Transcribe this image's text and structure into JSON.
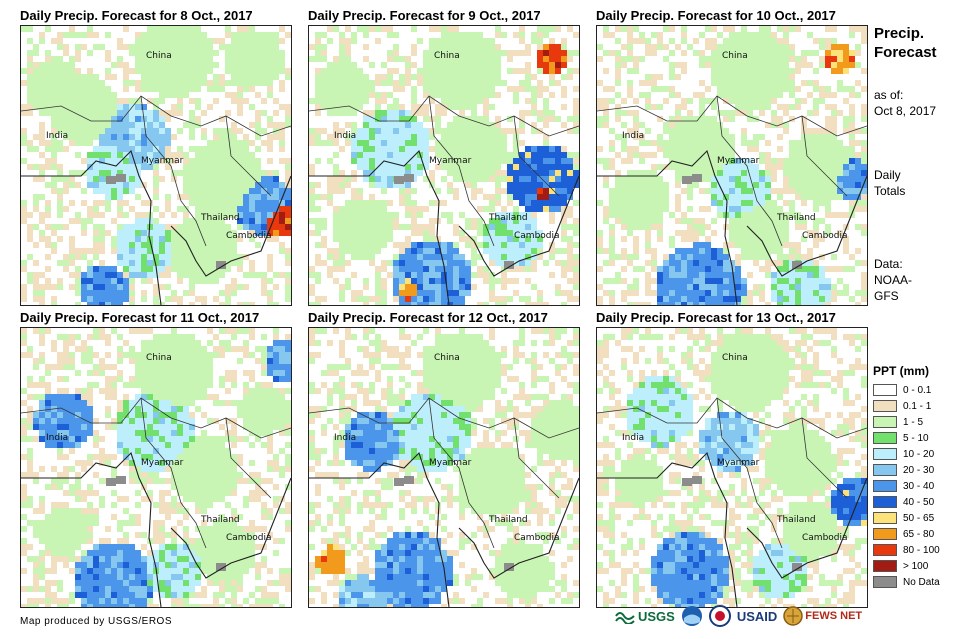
{
  "panels": [
    {
      "title": "Daily Precip. Forecast for 8 Oct., 2017"
    },
    {
      "title": "Daily Precip. Forecast for 9 Oct., 2017"
    },
    {
      "title": "Daily Precip. Forecast for 10 Oct., 2017"
    },
    {
      "title": "Daily Precip. Forecast for 11 Oct., 2017"
    },
    {
      "title": "Daily Precip. Forecast for 12 Oct., 2017"
    },
    {
      "title": "Daily Precip. Forecast for 13 Oct., 2017"
    }
  ],
  "places": {
    "china": "China",
    "india": "India",
    "myanmar": "Myanmar",
    "thailand": "Thailand",
    "cambodia": "Cambodia"
  },
  "sidebar": {
    "title_line1": "Precip.",
    "title_line2": "Forecast",
    "asof_line1": "as of:",
    "asof_line2": "Oct 8, 2017",
    "totals_line1": "Daily",
    "totals_line2": "Totals",
    "data_line1": "Data:",
    "data_line2": "NOAA-",
    "data_line3": "GFS"
  },
  "legend": {
    "title": "PPT (mm)",
    "items": [
      {
        "label": "0 - 0.1",
        "color": "#ffffff"
      },
      {
        "label": "0.1 - 1",
        "color": "#f1dfc0"
      },
      {
        "label": "1 - 5",
        "color": "#c8f5b4"
      },
      {
        "label": "5 - 10",
        "color": "#72e06c"
      },
      {
        "label": "10 - 20",
        "color": "#bdeefb"
      },
      {
        "label": "20 - 30",
        "color": "#86c7ef"
      },
      {
        "label": "30 - 40",
        "color": "#4b96ea"
      },
      {
        "label": "40 - 50",
        "color": "#1c5fd6"
      },
      {
        "label": "50 - 65",
        "color": "#fbe27a"
      },
      {
        "label": "65 - 80",
        "color": "#f29a1c"
      },
      {
        "label": "80 - 100",
        "color": "#e8380e"
      },
      {
        "label": "> 100",
        "color": "#a31c13"
      },
      {
        "label": "No Data",
        "color": "#8c8c8c"
      }
    ]
  },
  "footer": {
    "credit": "Map produced by USGS/EROS"
  },
  "logos": {
    "usgs": "USGS",
    "usaid": "USAID",
    "fewsnet": "FEWS NET"
  }
}
